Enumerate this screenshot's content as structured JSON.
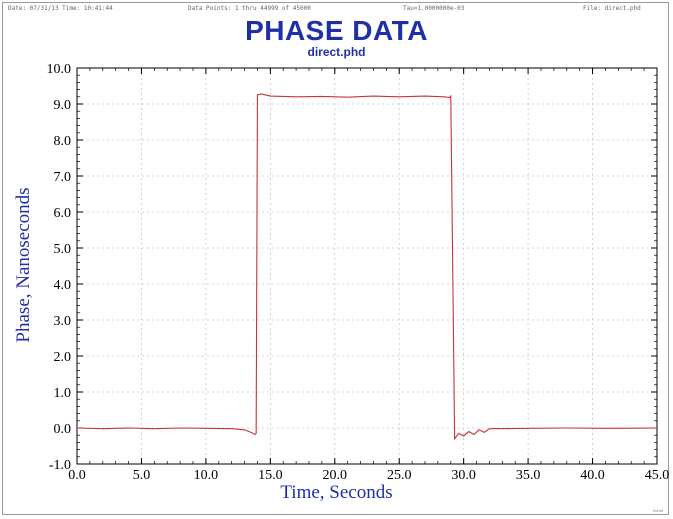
{
  "header": {
    "date": "Date: 07/31/13  Time: 10:41:44",
    "points": "Data Points: 1 thru 44999 of 45000",
    "tau": "Tau=1.0000000e-03",
    "file": "File: direct.phd"
  },
  "corner_mark": "frontd",
  "colors": {
    "title": "#1f2fa8",
    "line": "#c8323c",
    "grid": "#c8c8c8",
    "frame": "#000000"
  },
  "chart_data": {
    "type": "line",
    "title": "PHASE DATA",
    "subtitle": "direct.phd",
    "xlabel": "Time, Seconds",
    "ylabel": "Phase, Nanoseconds",
    "xlim": [
      0,
      45
    ],
    "ylim": [
      -1,
      10
    ],
    "grid": true,
    "x_ticks": [
      "0.0",
      "5.0",
      "10.0",
      "15.0",
      "20.0",
      "25.0",
      "30.0",
      "35.0",
      "40.0",
      "45.0"
    ],
    "y_ticks": [
      "-1.0",
      "0.0",
      "1.0",
      "2.0",
      "3.0",
      "4.0",
      "5.0",
      "6.0",
      "7.0",
      "8.0",
      "9.0",
      "10.0"
    ],
    "series": [
      {
        "x": [
          0.0,
          2.0,
          4.0,
          6.0,
          8.0,
          10.0,
          12.0,
          13.0,
          13.5,
          13.8,
          13.9,
          14.0,
          14.3,
          15.0,
          17.0,
          19.0,
          21.0,
          23.0,
          25.0,
          27.0,
          28.5,
          28.9,
          29.0,
          29.3,
          29.6,
          30.0,
          30.4,
          30.8,
          31.2,
          31.6,
          32.0,
          35.0,
          38.0,
          41.0,
          45.0
        ],
        "y": [
          0.0,
          -0.02,
          0.0,
          -0.02,
          0.0,
          -0.01,
          -0.02,
          -0.05,
          -0.12,
          -0.18,
          -0.15,
          9.25,
          9.28,
          9.22,
          9.2,
          9.21,
          9.19,
          9.22,
          9.2,
          9.22,
          9.2,
          9.18,
          9.22,
          -0.3,
          -0.15,
          -0.22,
          -0.1,
          -0.18,
          -0.05,
          -0.12,
          -0.02,
          -0.01,
          0.0,
          -0.01,
          0.0
        ]
      }
    ]
  }
}
